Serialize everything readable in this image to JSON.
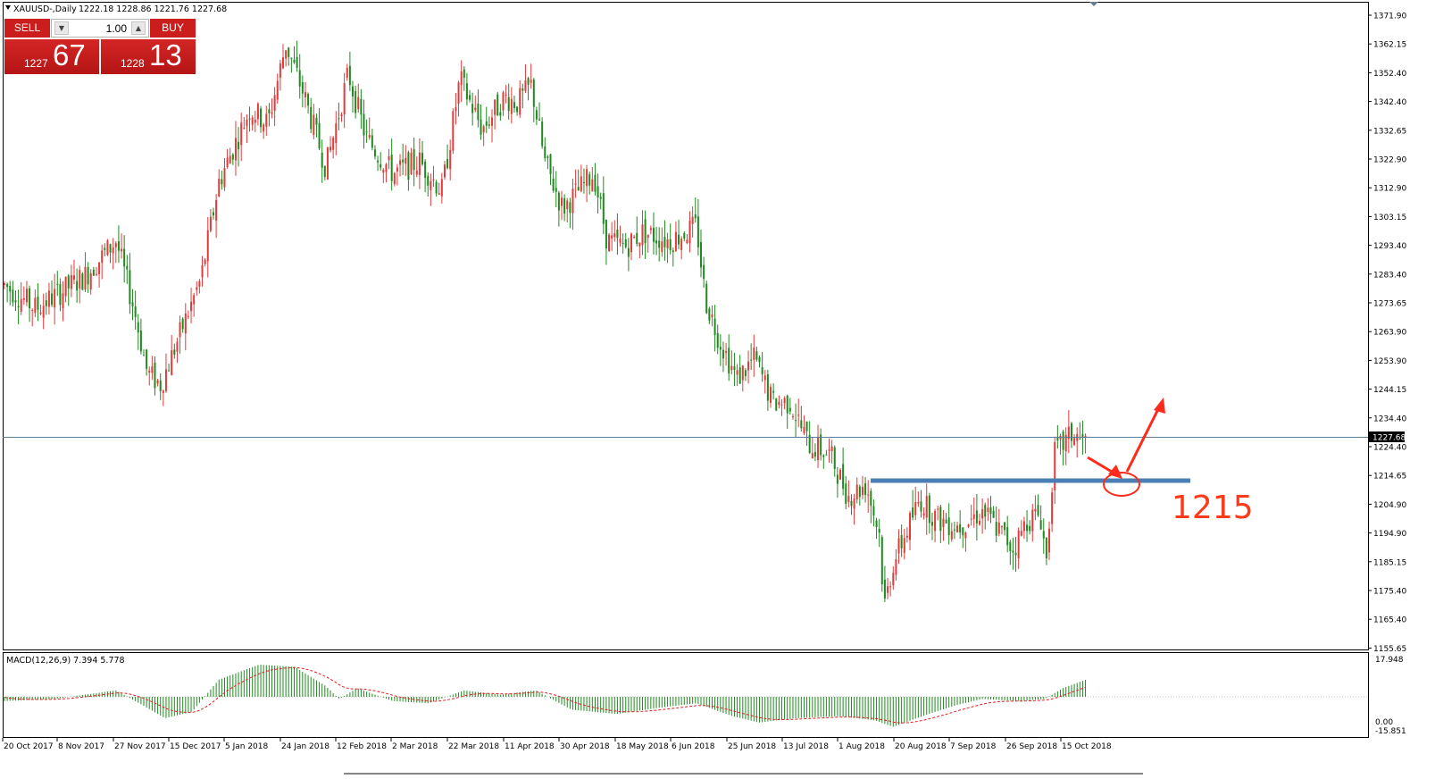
{
  "header": {
    "symbol": "XAUUSD-,Daily",
    "ohlc": "1222.18 1228.86 1221.76 1227.68"
  },
  "one_click": {
    "sell_label": "SELL",
    "buy_label": "BUY",
    "lot": "1.00",
    "sell_small": "1227",
    "sell_big": "67",
    "buy_small": "1228",
    "buy_big": "13"
  },
  "price_axis": {
    "labels": [
      "1371.90",
      "1362.15",
      "1352.40",
      "1342.40",
      "1332.65",
      "1322.90",
      "1312.90",
      "1303.15",
      "1293.40",
      "1283.40",
      "1273.65",
      "1263.90",
      "1253.90",
      "1244.15",
      "1234.40",
      "1224.40",
      "1214.65",
      "1204.90",
      "1194.90",
      "1185.15",
      "1175.40",
      "1165.40",
      "1155.65"
    ],
    "current": "1227.68"
  },
  "macd": {
    "label": "MACD(12,26,9) 7.394 5.778",
    "axis_labels": [
      "17.948",
      "0.00",
      "-15.851"
    ]
  },
  "time_axis": {
    "labels": [
      "20 Oct 2017",
      "8 Nov 2017",
      "27 Nov 2017",
      "15 Dec 2017",
      "5 Jan 2018",
      "24 Jan 2018",
      "12 Feb 2018",
      "2 Mar 2018",
      "22 Mar 2018",
      "11 Apr 2018",
      "30 Apr 2018",
      "18 May 2018",
      "6 Jun 2018",
      "25 Jun 2018",
      "13 Jul 2018",
      "1 Aug 2018",
      "20 Aug 2018",
      "7 Sep 2018",
      "26 Sep 2018",
      "15 Oct 2018"
    ]
  },
  "annotation": {
    "level_text": "1215"
  },
  "colors": {
    "bull": "#e23b3b",
    "bear": "#1f8a1f",
    "support_line": "#4a7fb5",
    "annotation": "#ff2a1a",
    "price_line": "#5b7f9a"
  }
}
